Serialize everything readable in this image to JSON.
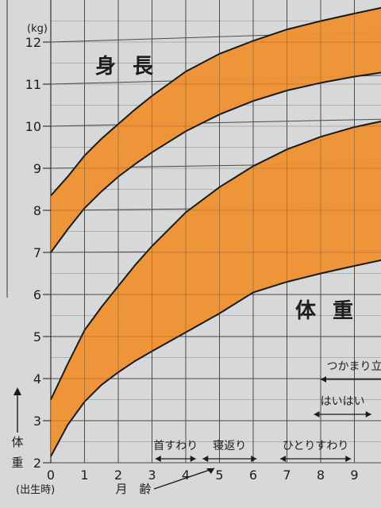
{
  "chart_data": {
    "type": "area",
    "x": [
      0,
      1,
      2,
      3,
      4,
      5,
      6,
      7,
      8,
      9,
      10
    ],
    "xlim": [
      0,
      10
    ],
    "ylim": [
      2,
      12.5
    ],
    "unit": "(kg)",
    "x_ticks": [
      0,
      1,
      2,
      3,
      4,
      5,
      6,
      7,
      8,
      9
    ],
    "y_ticks": [
      2,
      3,
      4,
      5,
      6,
      7,
      8,
      9,
      10,
      11,
      12
    ],
    "xlabel_birth": "(出生時)",
    "xlabel": "月　齢",
    "ylabel": "体重",
    "grid": true,
    "bands": [
      {
        "name": "身 長",
        "x": [
          0,
          0.5,
          1,
          1.5,
          2,
          2.5,
          3,
          4,
          5,
          6,
          7,
          8,
          9,
          10
        ],
        "upper": [
          8.35,
          8.8,
          9.3,
          9.7,
          10.05,
          10.4,
          10.72,
          11.3,
          11.72,
          12.03,
          12.3,
          12.5,
          12.68,
          12.85
        ],
        "lower": [
          7.0,
          7.55,
          8.05,
          8.45,
          8.8,
          9.1,
          9.38,
          9.88,
          10.28,
          10.6,
          10.85,
          11.03,
          11.18,
          11.3
        ]
      },
      {
        "name": "体 重",
        "x": [
          0,
          0.5,
          1,
          1.5,
          2,
          2.5,
          3,
          4,
          5,
          6,
          7,
          8,
          9,
          10
        ],
        "upper": [
          3.5,
          4.35,
          5.15,
          5.7,
          6.2,
          6.7,
          7.15,
          7.95,
          8.55,
          9.05,
          9.45,
          9.75,
          9.98,
          10.15
        ],
        "lower": [
          2.15,
          2.9,
          3.45,
          3.85,
          4.15,
          4.42,
          4.65,
          5.1,
          5.55,
          6.05,
          6.3,
          6.5,
          6.68,
          6.85
        ]
      }
    ],
    "milestones": [
      {
        "label": "首すわり",
        "from": 3.1,
        "to": 4.3,
        "row": 0
      },
      {
        "label": "寝返り",
        "from": 4.5,
        "to": 6.1,
        "row": 0
      },
      {
        "label": "ひとりすわり",
        "from": 6.8,
        "to": 8.9,
        "row": 0
      },
      {
        "label": "はいはい",
        "from": 7.8,
        "to": 9.5,
        "row": 1
      },
      {
        "label": "つかまり立",
        "from": 8.0,
        "to": 10.0,
        "row": 2
      }
    ],
    "colors": {
      "band": "#ef9132",
      "grid": "#4a4a4a",
      "paper": "#d7d8da",
      "line": "#1a1a1a"
    }
  }
}
